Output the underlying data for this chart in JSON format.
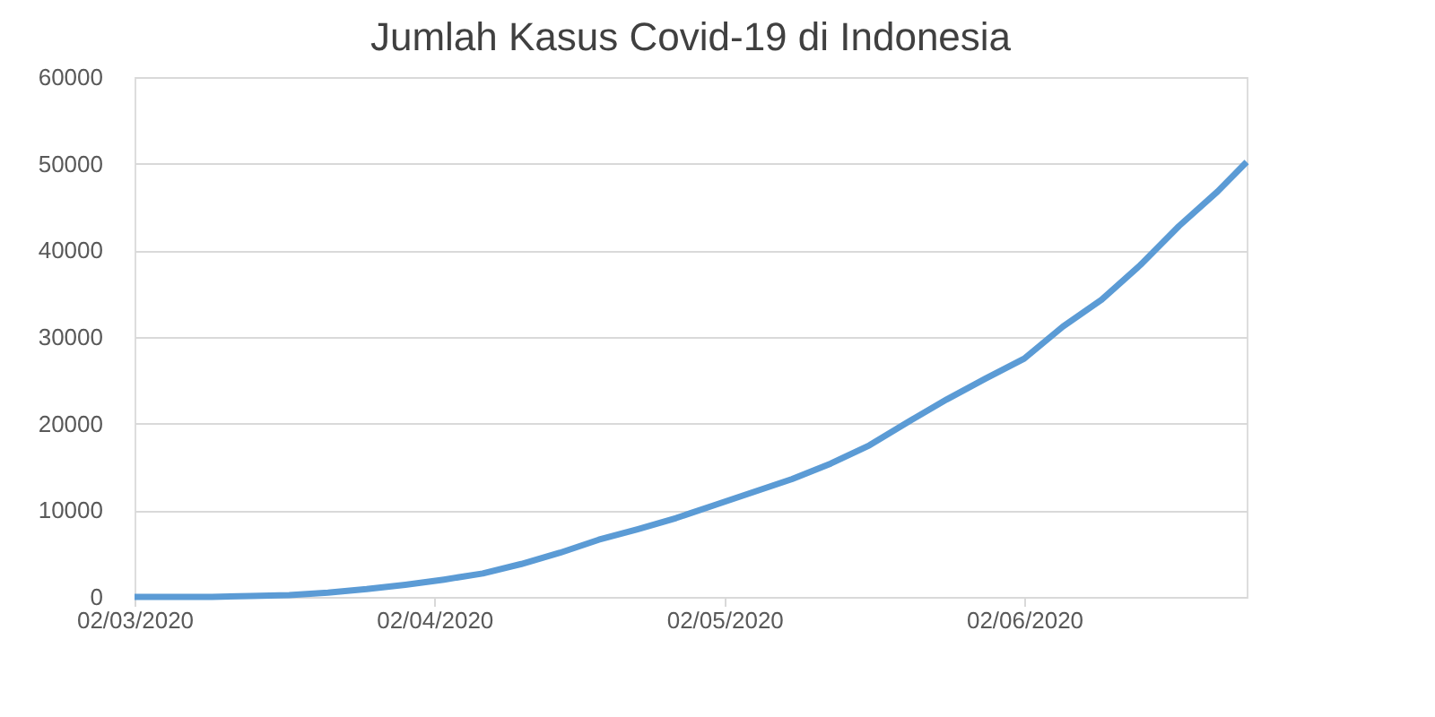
{
  "chart_data": {
    "type": "line",
    "title": "Jumlah Kasus Covid-19  di Indonesia",
    "x": [
      "2020-03-02",
      "2020-03-06",
      "2020-03-10",
      "2020-03-14",
      "2020-03-18",
      "2020-03-22",
      "2020-03-26",
      "2020-03-30",
      "2020-04-03",
      "2020-04-07",
      "2020-04-11",
      "2020-04-15",
      "2020-04-19",
      "2020-04-23",
      "2020-04-27",
      "2020-05-01",
      "2020-05-05",
      "2020-05-09",
      "2020-05-13",
      "2020-05-17",
      "2020-05-21",
      "2020-05-25",
      "2020-05-29",
      "2020-06-02",
      "2020-06-06",
      "2020-06-10",
      "2020-06-14",
      "2020-06-18",
      "2020-06-22",
      "2020-06-25"
    ],
    "series": [
      {
        "color": "#5b9bd5",
        "values": [
          0,
          0,
          0,
          100,
          200,
          500,
          900,
          1400,
          2000,
          2700,
          3800,
          5100,
          6600,
          7800,
          9100,
          10600,
          12100,
          13600,
          15400,
          17500,
          20200,
          22800,
          25200,
          27500,
          31200,
          34300,
          38300,
          42800,
          46800,
          50200
        ]
      }
    ],
    "xlim": [
      "2020-03-02",
      "2020-06-25"
    ],
    "xticks": [
      {
        "value": "2020-03-02",
        "label": "02/03/2020"
      },
      {
        "value": "2020-04-02",
        "label": "02/04/2020"
      },
      {
        "value": "2020-05-02",
        "label": "02/05/2020"
      },
      {
        "value": "2020-06-02",
        "label": "02/06/2020"
      }
    ],
    "ylim": [
      0,
      60000
    ],
    "yticks": [
      0,
      10000,
      20000,
      30000,
      40000,
      50000,
      60000
    ],
    "grid": "y",
    "marker": "none",
    "line_style": "solid"
  }
}
